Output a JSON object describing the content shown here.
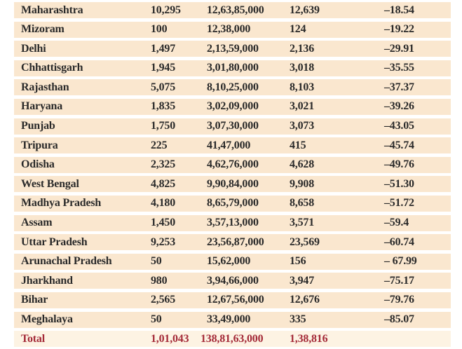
{
  "colors": {
    "row_band": "#fae7cf",
    "total_band": "#fdf3e3",
    "text": "#2a2a2a",
    "total_text": "#a42a38",
    "background": "#ffffff"
  },
  "table": {
    "rows": [
      {
        "state": "Maharashtra",
        "v1": "10,295",
        "v2": "12,63,85,000",
        "v3": "12,639",
        "pct": "–18.54"
      },
      {
        "state": "Mizoram",
        "v1": "100",
        "v2": "12,38,000",
        "v3": "124",
        "pct": "–19.22"
      },
      {
        "state": "Delhi",
        "v1": "1,497",
        "v2": "2,13,59,000",
        "v3": "2,136",
        "pct": "–29.91"
      },
      {
        "state": "Chhattisgarh",
        "v1": "1,945",
        "v2": "3,01,80,000",
        "v3": "3,018",
        "pct": "–35.55"
      },
      {
        "state": "Rajasthan",
        "v1": "5,075",
        "v2": "8,10,25,000",
        "v3": "8,103",
        "pct": "–37.37"
      },
      {
        "state": "Haryana",
        "v1": "1,835",
        "v2": "3,02,09,000",
        "v3": "3,021",
        "pct": "–39.26"
      },
      {
        "state": "Punjab",
        "v1": "1,750",
        "v2": "3,07,30,000",
        "v3": "3,073",
        "pct": "–43.05"
      },
      {
        "state": "Tripura",
        "v1": "225",
        "v2": "41,47,000",
        "v3": "415",
        "pct": "–45.74"
      },
      {
        "state": "Odisha",
        "v1": "2,325",
        "v2": "4,62,76,000",
        "v3": "4,628",
        "pct": "–49.76"
      },
      {
        "state": "West Bengal",
        "v1": "4,825",
        "v2": "9,90,84,000",
        "v3": "9,908",
        "pct": "–51.30"
      },
      {
        "state": "Madhya Pradesh",
        "v1": "4,180",
        "v2": "8,65,79,000",
        "v3": "8,658",
        "pct": "–51.72"
      },
      {
        "state": "Assam",
        "v1": "1,450",
        "v2": "3,57,13,000",
        "v3": "3,571",
        "pct": "–59.4"
      },
      {
        "state": "Uttar Pradesh",
        "v1": "9,253",
        "v2": "23,56,87,000",
        "v3": "23,569",
        "pct": "–60.74"
      },
      {
        "state": "Arunachal Pradesh",
        "v1": "50",
        "v2": "15,62,000",
        "v3": "156",
        "pct": "– 67.99"
      },
      {
        "state": "Jharkhand",
        "v1": "980",
        "v2": "3,94,66,000",
        "v3": "3,947",
        "pct": "–75.17"
      },
      {
        "state": "Bihar",
        "v1": "2,565",
        "v2": "12,67,56,000",
        "v3": "12,676",
        "pct": "–79.76"
      },
      {
        "state": "Meghalaya",
        "v1": "50",
        "v2": "33,49,000",
        "v3": "335",
        "pct": "–85.07"
      }
    ],
    "total": {
      "state": "Total",
      "v1": "1,01,043",
      "v2": "138,81,63,000",
      "v3": "1,38,816",
      "pct": ""
    }
  }
}
